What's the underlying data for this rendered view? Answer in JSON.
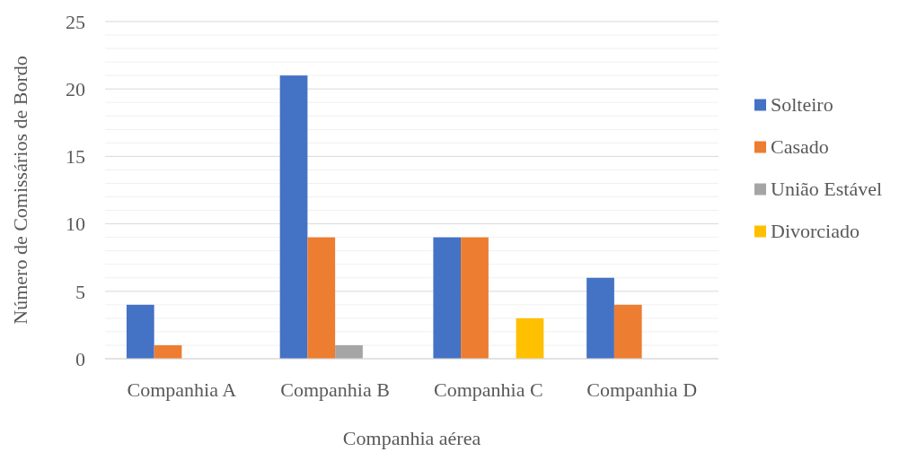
{
  "chart_data": {
    "type": "bar",
    "xlabel": "Companhia aérea",
    "ylabel": "Número de Comissários de Bordo",
    "categories": [
      "Companhia A",
      "Companhia B",
      "Companhia C",
      "Companhia D"
    ],
    "series": [
      {
        "name": "Solteiro",
        "color": "#4472c4",
        "values": [
          4,
          21,
          9,
          6
        ]
      },
      {
        "name": "Casado",
        "color": "#ed7d31",
        "values": [
          1,
          9,
          9,
          4
        ]
      },
      {
        "name": "União Estável",
        "color": "#a5a5a5",
        "values": [
          0,
          1,
          0,
          0
        ]
      },
      {
        "name": "Divorciado",
        "color": "#ffc000",
        "values": [
          0,
          0,
          3,
          0
        ]
      }
    ],
    "ylim": [
      0,
      25
    ],
    "yticks": [
      0,
      {
        "value": 1,
        "label": null
      },
      {
        "value": 2,
        "label": null
      },
      {
        "value": 3,
        "label": null
      },
      {
        "value": 4,
        "label": null
      },
      5,
      {
        "value": 6,
        "label": null
      },
      {
        "value": 7,
        "label": null
      },
      {
        "value": 8,
        "label": null
      },
      {
        "value": 9,
        "label": null
      },
      10,
      {
        "value": 11,
        "label": null
      },
      {
        "value": 12,
        "label": null
      },
      {
        "value": 13,
        "label": null
      },
      {
        "value": 14,
        "label": null
      },
      15,
      {
        "value": 16,
        "label": null
      },
      {
        "value": 17,
        "label": null
      },
      {
        "value": 18,
        "label": null
      },
      {
        "value": 19,
        "label": null
      },
      20,
      {
        "value": 21,
        "label": null
      },
      {
        "value": 22,
        "label": null
      },
      {
        "value": 23,
        "label": null
      },
      {
        "value": 24,
        "label": null
      },
      25
    ],
    "grid": true,
    "legend": "right"
  }
}
